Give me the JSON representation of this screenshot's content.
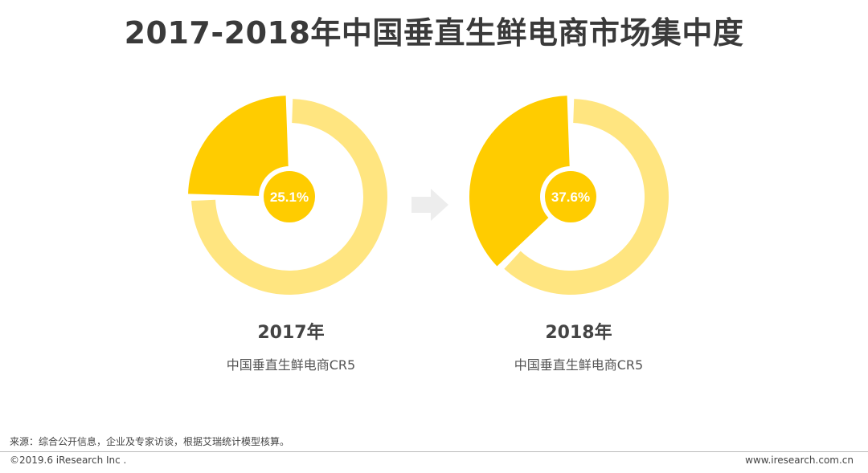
{
  "title": "2017-2018年中国垂直生鲜电商市场集中度",
  "colors": {
    "primary": "#FFCC00",
    "secondary": "#FFE580",
    "center": "#FFCC00",
    "center_text": "#ffffff",
    "arrow": "#EDEDED"
  },
  "chart_data": [
    {
      "type": "pie",
      "title": "2017年",
      "subtitle": "中国垂直生鲜电商CR5",
      "center_label": "25.1%",
      "slices": [
        {
          "label": "CR5",
          "value": 25.1
        },
        {
          "label": "",
          "value": 74.9
        }
      ]
    },
    {
      "type": "pie",
      "title": "2018年",
      "subtitle": "中国垂直生鲜电商CR5",
      "center_label": "37.6%",
      "slices": [
        {
          "label": "CR5",
          "value": 37.6
        },
        {
          "label": "",
          "value": 62.4
        }
      ]
    }
  ],
  "footer": {
    "source": "来源：综合公开信息，企业及专家访谈，根据艾瑞统计模型核算。",
    "copyright": "©2019.6 iResearch Inc .",
    "website": "www.iresearch.com.cn"
  }
}
